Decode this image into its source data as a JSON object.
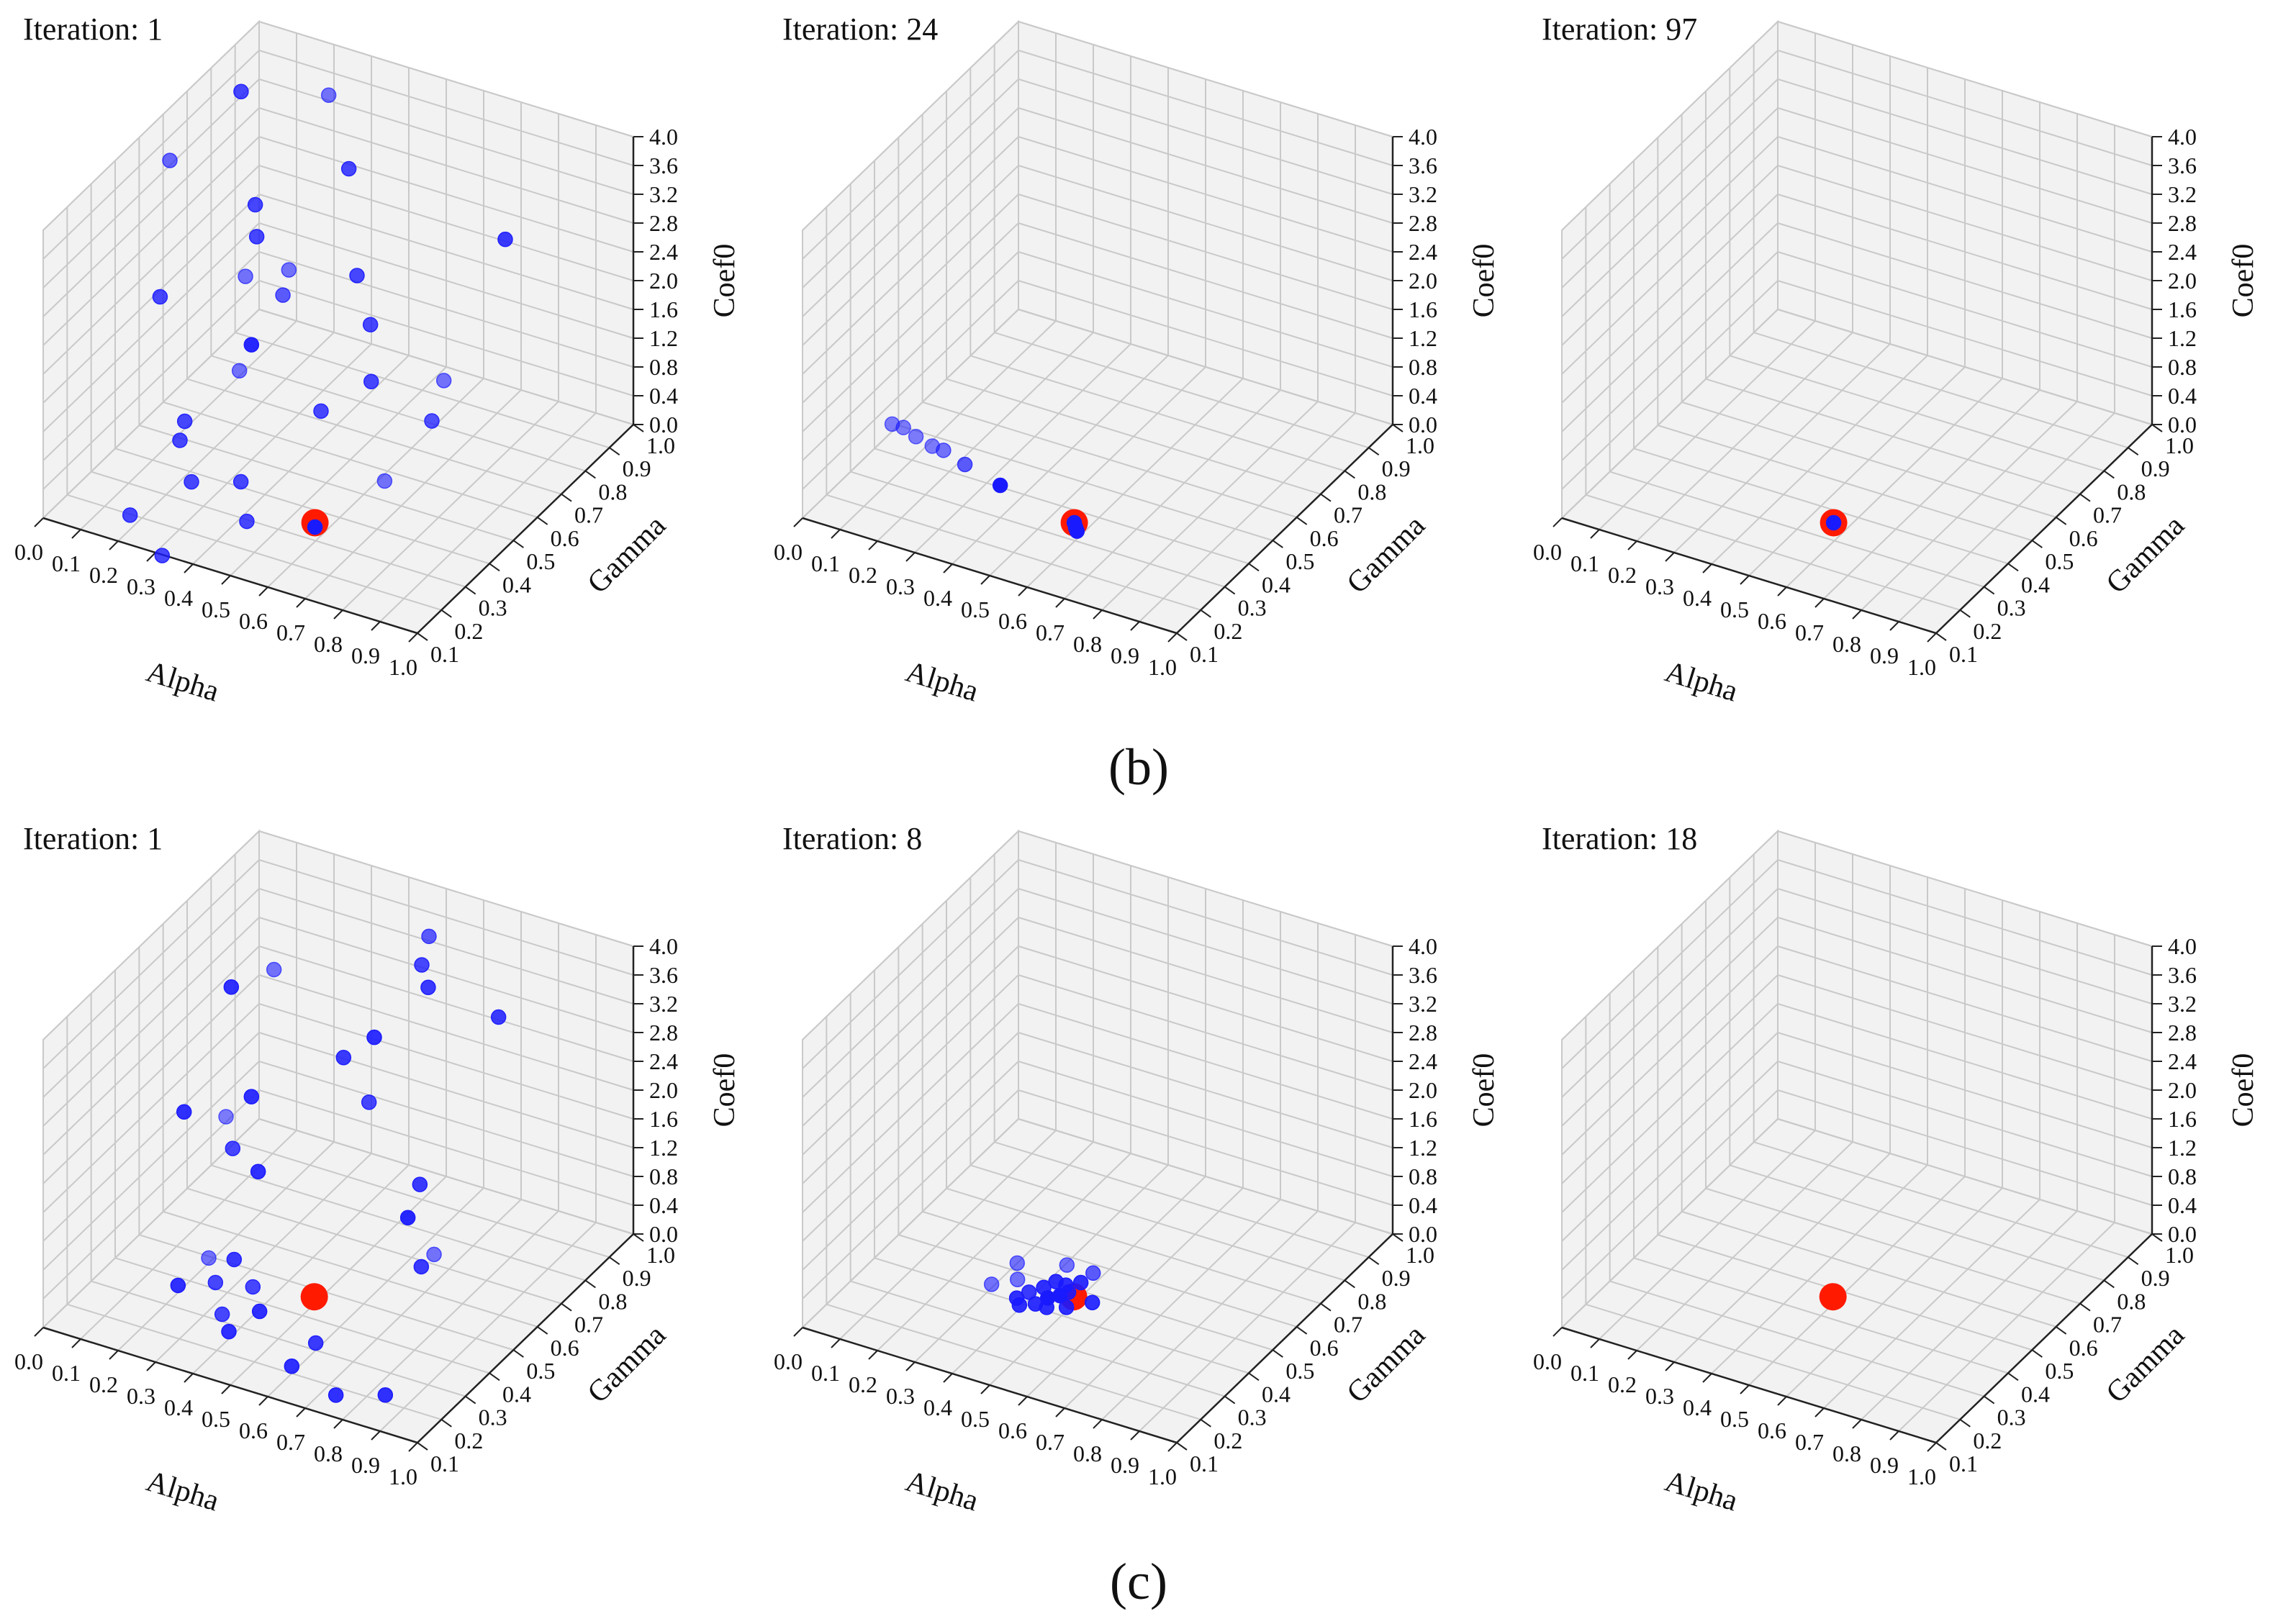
{
  "colors": {
    "background": "#ffffff",
    "pane_fill": "#f2f2f2",
    "grid": "#c9c9c9",
    "axis": "#222222",
    "candidate": "#1a1aff",
    "best": "#ff1a00"
  },
  "panel_labels": [
    "(b)",
    "(c)"
  ],
  "chart_data": [
    {
      "type": "scatter3d",
      "title": "Iteration: 1",
      "xlabel": "Alpha",
      "ylabel": "Gamma",
      "zlabel": "Coef0",
      "xlim": [
        0,
        1
      ],
      "ylim": [
        0.1,
        1.0
      ],
      "zlim": [
        0,
        4
      ],
      "xticks": [
        "0.0",
        "0.1",
        "0.2",
        "0.3",
        "0.4",
        "0.5",
        "0.6",
        "0.7",
        "0.8",
        "0.9",
        "1.0"
      ],
      "yticks": [
        "0.1",
        "0.2",
        "0.3",
        "0.4",
        "0.5",
        "0.6",
        "0.7",
        "0.8",
        "0.9",
        "1.0"
      ],
      "zticks": [
        "0.0",
        "0.4",
        "0.8",
        "1.2",
        "1.6",
        "2.0",
        "2.4",
        "2.8",
        "3.2",
        "3.6",
        "4.0"
      ],
      "best": {
        "x": 0.63,
        "y": 0.25,
        "z": 0.46
      },
      "series": [
        {
          "points": [
            [
              0.05,
              0.55,
              3.6,
              0.65
            ],
            [
              0.08,
              0.8,
              3.8,
              0.8
            ],
            [
              0.25,
              0.9,
              3.7,
              0.6
            ],
            [
              0.12,
              0.4,
              2.3,
              0.8
            ],
            [
              0.25,
              0.6,
              2.7,
              0.8
            ],
            [
              0.4,
              0.5,
              2.8,
              0.6
            ],
            [
              0.4,
              0.75,
              3.4,
              0.8
            ],
            [
              0.55,
              0.55,
              2.8,
              0.8
            ],
            [
              0.65,
              0.45,
              2.6,
              0.8
            ],
            [
              0.85,
              0.7,
              3.3,
              0.85
            ],
            [
              0.15,
              0.75,
              2.5,
              0.8
            ],
            [
              0.22,
              0.6,
              2.1,
              0.6
            ],
            [
              0.3,
              0.5,
              1.6,
              0.95
            ],
            [
              0.32,
              0.6,
              2.0,
              0.7
            ],
            [
              0.3,
              0.45,
              1.4,
              0.6
            ],
            [
              0.55,
              0.4,
              1.4,
              0.8
            ],
            [
              0.62,
              0.5,
              1.6,
              0.8
            ],
            [
              0.75,
              0.6,
              1.5,
              0.6
            ],
            [
              0.75,
              0.55,
              1.1,
              0.75
            ],
            [
              0.72,
              0.4,
              0.7,
              0.6
            ],
            [
              0.25,
              0.3,
              1.1,
              0.8
            ],
            [
              0.25,
              0.28,
              0.9,
              0.8
            ],
            [
              0.3,
              0.25,
              0.5,
              0.8
            ],
            [
              0.4,
              0.3,
              0.5,
              0.8
            ],
            [
              0.48,
              0.2,
              0.4,
              0.8
            ],
            [
              0.2,
              0.15,
              0.2,
              0.8
            ],
            [
              0.35,
              0.05,
              0.2,
              0.8
            ],
            [
              0.63,
              0.25,
              0.4,
              1.0
            ]
          ]
        }
      ]
    },
    {
      "type": "scatter3d",
      "title": "Iteration: 24",
      "xlabel": "Alpha",
      "ylabel": "Gamma",
      "zlabel": "Coef0",
      "xlim": [
        0,
        1
      ],
      "ylim": [
        0.1,
        1.0
      ],
      "zlim": [
        0,
        4
      ],
      "xticks": [
        "0.0",
        "0.1",
        "0.2",
        "0.3",
        "0.4",
        "0.5",
        "0.6",
        "0.7",
        "0.8",
        "0.9",
        "1.0"
      ],
      "yticks": [
        "0.1",
        "0.2",
        "0.3",
        "0.4",
        "0.5",
        "0.6",
        "0.7",
        "0.8",
        "0.9",
        "1.0"
      ],
      "zticks": [
        "0.0",
        "0.4",
        "0.8",
        "1.2",
        "1.6",
        "2.0",
        "2.4",
        "2.8",
        "3.2",
        "3.6",
        "4.0"
      ],
      "best": {
        "x": 0.63,
        "y": 0.25,
        "z": 0.46
      },
      "series": [
        {
          "points": [
            [
              0.06,
              0.38,
              0.5,
              0.55
            ],
            [
              0.09,
              0.38,
              0.5,
              0.55
            ],
            [
              0.13,
              0.37,
              0.47,
              0.55
            ],
            [
              0.18,
              0.36,
              0.45,
              0.55
            ],
            [
              0.21,
              0.36,
              0.44,
              0.6
            ],
            [
              0.28,
              0.34,
              0.42,
              0.7
            ],
            [
              0.4,
              0.3,
              0.45,
              1.0
            ],
            [
              0.63,
              0.25,
              0.46,
              1.0
            ],
            [
              0.64,
              0.24,
              0.44,
              1.0
            ],
            [
              0.65,
              0.23,
              0.44,
              1.0
            ]
          ]
        }
      ]
    },
    {
      "type": "scatter3d",
      "title": "Iteration: 97",
      "xlabel": "Alpha",
      "ylabel": "Gamma",
      "zlabel": "Coef0",
      "xlim": [
        0,
        1
      ],
      "ylim": [
        0.1,
        1.0
      ],
      "zlim": [
        0,
        4
      ],
      "xticks": [
        "0.0",
        "0.1",
        "0.2",
        "0.3",
        "0.4",
        "0.5",
        "0.6",
        "0.7",
        "0.8",
        "0.9",
        "1.0"
      ],
      "yticks": [
        "0.1",
        "0.2",
        "0.3",
        "0.4",
        "0.5",
        "0.6",
        "0.7",
        "0.8",
        "0.9",
        "1.0"
      ],
      "zticks": [
        "0.0",
        "0.4",
        "0.8",
        "1.2",
        "1.6",
        "2.0",
        "2.4",
        "2.8",
        "3.2",
        "3.6",
        "4.0"
      ],
      "best": {
        "x": 0.63,
        "y": 0.25,
        "z": 0.46
      },
      "series": [
        {
          "points": [
            [
              0.63,
              0.25,
              0.46,
              1.0
            ]
          ]
        }
      ]
    },
    {
      "type": "scatter3d",
      "title": "Iteration: 1",
      "xlabel": "Alpha",
      "ylabel": "Gamma",
      "zlabel": "Coef0",
      "xlim": [
        0,
        1
      ],
      "ylim": [
        0.1,
        1.0
      ],
      "zlim": [
        0,
        4
      ],
      "xticks": [
        "0.0",
        "0.1",
        "0.2",
        "0.3",
        "0.4",
        "0.5",
        "0.6",
        "0.7",
        "0.8",
        "0.9",
        "1.0"
      ],
      "yticks": [
        "0.1",
        "0.2",
        "0.3",
        "0.4",
        "0.5",
        "0.6",
        "0.7",
        "0.8",
        "0.9",
        "1.0"
      ],
      "zticks": [
        "0.0",
        "0.4",
        "0.8",
        "1.2",
        "1.6",
        "2.0",
        "2.4",
        "2.8",
        "3.2",
        "3.6",
        "4.0"
      ],
      "best": {
        "x": 0.5,
        "y": 0.45,
        "z": 0.1
      },
      "series": [
        {
          "points": [
            [
              0.55,
              0.85,
              3.9,
              0.7
            ],
            [
              0.55,
              0.82,
              3.6,
              0.8
            ],
            [
              0.58,
              0.8,
              3.4,
              0.85
            ],
            [
              0.8,
              0.75,
              3.5,
              0.85
            ],
            [
              0.15,
              0.65,
              3.2,
              0.9
            ],
            [
              0.2,
              0.75,
              3.2,
              0.6
            ],
            [
              0.5,
              0.7,
              2.9,
              0.9
            ],
            [
              0.45,
              0.65,
              2.7,
              0.85
            ],
            [
              0.55,
              0.6,
              2.4,
              0.8
            ],
            [
              0.3,
              0.5,
              2.4,
              0.9
            ],
            [
              0.12,
              0.5,
              1.9,
              0.9
            ],
            [
              0.2,
              0.55,
              1.8,
              0.55
            ],
            [
              0.25,
              0.5,
              1.6,
              0.8
            ],
            [
              0.35,
              0.45,
              1.6,
              0.9
            ],
            [
              0.75,
              0.5,
              1.9,
              0.85
            ],
            [
              0.75,
              0.45,
              1.6,
              0.95
            ],
            [
              0.82,
              0.45,
              1.2,
              0.6
            ],
            [
              0.85,
              0.35,
              1.4,
              0.85
            ],
            [
              0.25,
              0.4,
              0.4,
              0.6
            ],
            [
              0.3,
              0.35,
              0.3,
              0.8
            ],
            [
              0.35,
              0.35,
              0.7,
              0.85
            ],
            [
              0.4,
              0.35,
              0.4,
              0.8
            ],
            [
              0.45,
              0.3,
              0.3,
              0.9
            ],
            [
              0.35,
              0.3,
              0.1,
              0.8
            ],
            [
              0.6,
              0.3,
              0.1,
              0.85
            ],
            [
              0.6,
              0.2,
              0.1,
              0.9
            ],
            [
              0.2,
              0.35,
              0.1,
              0.9
            ],
            [
              0.75,
              0.15,
              0.1,
              0.9
            ],
            [
              0.85,
              0.2,
              0.1,
              0.9
            ],
            [
              0.4,
              0.25,
              0.1,
              0.9
            ]
          ]
        }
      ]
    },
    {
      "type": "scatter3d",
      "title": "Iteration: 8",
      "xlabel": "Alpha",
      "ylabel": "Gamma",
      "zlabel": "Coef0",
      "xlim": [
        0,
        1
      ],
      "ylim": [
        0.1,
        1.0
      ],
      "zlim": [
        0,
        4
      ],
      "xticks": [
        "0.0",
        "0.1",
        "0.2",
        "0.3",
        "0.4",
        "0.5",
        "0.6",
        "0.7",
        "0.8",
        "0.9",
        "1.0"
      ],
      "yticks": [
        "0.1",
        "0.2",
        "0.3",
        "0.4",
        "0.5",
        "0.6",
        "0.7",
        "0.8",
        "0.9",
        "1.0"
      ],
      "zticks": [
        "0.0",
        "0.4",
        "0.8",
        "1.2",
        "1.6",
        "2.0",
        "2.4",
        "2.8",
        "3.2",
        "3.6",
        "4.0"
      ],
      "best": {
        "x": 0.5,
        "y": 0.45,
        "z": 0.1
      },
      "series": [
        {
          "points": [
            [
              0.45,
              0.5,
              0.3,
              0.6
            ],
            [
              0.35,
              0.45,
              0.1,
              0.6
            ],
            [
              0.4,
              0.42,
              0.1,
              0.85
            ],
            [
              0.42,
              0.45,
              0.1,
              0.9
            ],
            [
              0.44,
              0.47,
              0.15,
              0.9
            ],
            [
              0.46,
              0.48,
              0.1,
              0.9
            ],
            [
              0.48,
              0.46,
              0.1,
              0.9
            ],
            [
              0.5,
              0.48,
              0.2,
              0.9
            ],
            [
              0.52,
              0.5,
              0.3,
              0.7
            ],
            [
              0.55,
              0.45,
              0.1,
              0.9
            ],
            [
              0.45,
              0.42,
              0.1,
              1.0
            ],
            [
              0.47,
              0.44,
              0.1,
              1.0
            ],
            [
              0.43,
              0.4,
              0.05,
              0.9
            ],
            [
              0.4,
              0.38,
              0.05,
              0.9
            ],
            [
              0.38,
              0.4,
              0.05,
              0.9
            ],
            [
              0.46,
              0.4,
              0.05,
              0.9
            ],
            [
              0.5,
              0.42,
              0.05,
              0.9
            ],
            [
              0.3,
              0.42,
              0.05,
              0.6
            ],
            [
              0.33,
              0.48,
              0.2,
              0.6
            ]
          ]
        }
      ]
    },
    {
      "type": "scatter3d",
      "title": "Iteration: 18",
      "xlabel": "Alpha",
      "ylabel": "Gamma",
      "zlabel": "Coef0",
      "xlim": [
        0,
        1
      ],
      "ylim": [
        0.1,
        1.0
      ],
      "zlim": [
        0,
        4
      ],
      "xticks": [
        "0.0",
        "0.1",
        "0.2",
        "0.3",
        "0.4",
        "0.5",
        "0.6",
        "0.7",
        "0.8",
        "0.9",
        "1.0"
      ],
      "yticks": [
        "0.1",
        "0.2",
        "0.3",
        "0.4",
        "0.5",
        "0.6",
        "0.7",
        "0.8",
        "0.9",
        "1.0"
      ],
      "zticks": [
        "0.0",
        "0.4",
        "0.8",
        "1.2",
        "1.6",
        "2.0",
        "2.4",
        "2.8",
        "3.2",
        "3.6",
        "4.0"
      ],
      "best": {
        "x": 0.5,
        "y": 0.45,
        "z": 0.1
      },
      "series": [
        {
          "points": []
        }
      ]
    }
  ]
}
